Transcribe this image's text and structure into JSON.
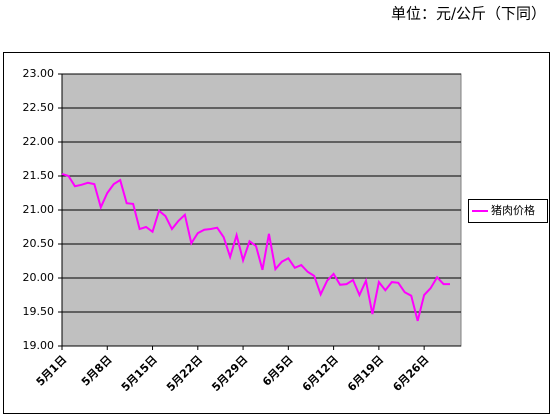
{
  "chart_data": {
    "type": "line",
    "subtitle": "单位：元/公斤（下同）",
    "categories": [
      "5月1日",
      null,
      null,
      null,
      null,
      null,
      null,
      "5月8日",
      null,
      null,
      null,
      null,
      null,
      null,
      "5月15日",
      null,
      null,
      null,
      null,
      null,
      null,
      "5月22日",
      null,
      null,
      null,
      null,
      null,
      null,
      "5月29日",
      null,
      null,
      null,
      null,
      null,
      null,
      "6月5日",
      null,
      null,
      null,
      null,
      null,
      null,
      "6月12日",
      null,
      null,
      null,
      null,
      null,
      null,
      "6月19日",
      null,
      null,
      null,
      null,
      null,
      null,
      "6月26日",
      null,
      null,
      null,
      null
    ],
    "series": [
      {
        "name": "猪肉价格",
        "color": "#ff00ff",
        "values": [
          21.53,
          21.5,
          21.35,
          21.37,
          21.4,
          21.38,
          21.04,
          21.25,
          21.38,
          21.44,
          21.1,
          21.09,
          20.72,
          20.75,
          20.68,
          20.99,
          20.91,
          20.72,
          20.84,
          20.93,
          20.51,
          20.66,
          20.71,
          20.72,
          20.74,
          20.6,
          20.31,
          20.63,
          20.26,
          20.54,
          20.47,
          20.12,
          20.65,
          20.13,
          20.24,
          20.29,
          20.15,
          20.19,
          20.09,
          20.03,
          19.76,
          19.96,
          20.06,
          19.9,
          19.91,
          19.97,
          19.75,
          19.96,
          19.47,
          19.94,
          19.82,
          19.94,
          19.93,
          19.79,
          19.74,
          19.37,
          19.75,
          19.85,
          20.01,
          19.91,
          19.91
        ]
      }
    ],
    "ylim": [
      19,
      23
    ],
    "yticks": [
      {
        "value": 19,
        "label": "19.00"
      },
      {
        "value": 19.5,
        "label": "19.50"
      },
      {
        "value": 20,
        "label": "20.00"
      },
      {
        "value": 20.5,
        "label": "20.50"
      },
      {
        "value": 21,
        "label": "21.00"
      },
      {
        "value": 21.5,
        "label": "21.50"
      },
      {
        "value": 22,
        "label": "22.00"
      },
      {
        "value": 22.5,
        "label": "22.50"
      },
      {
        "value": 23,
        "label": "23.00"
      }
    ],
    "grid": true,
    "legend": "right",
    "plot_background": "#c0c0c0"
  }
}
